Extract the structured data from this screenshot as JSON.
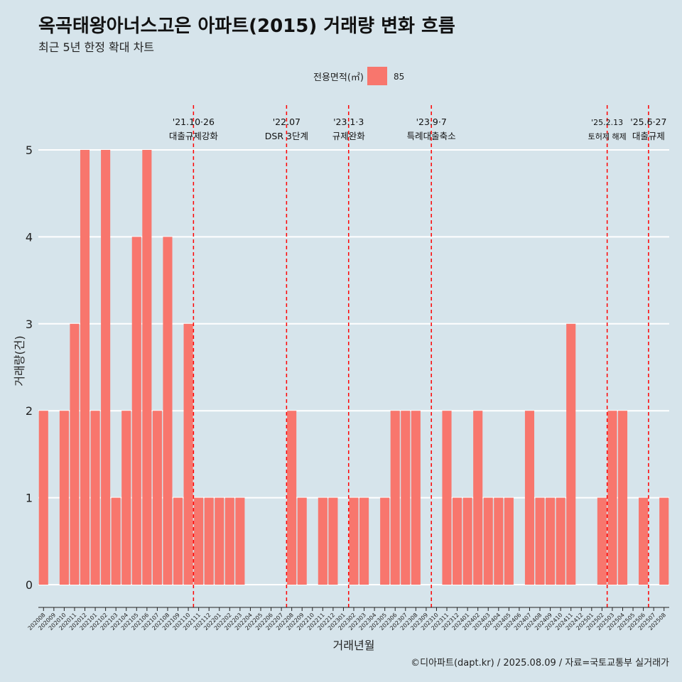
{
  "header": {
    "title": "옥곡태왕아너스고은 아파트(2015) 거래량 변화 흐름",
    "subtitle": "최근 5년 한정 확대 차트"
  },
  "caption": "©디아파트(dapt.kr) / 2025.08.09 / 자료=국토교통부 실거래가",
  "colors": {
    "background": "#d6e4eb",
    "bar": "#f8766d",
    "gridline": "#ffffff",
    "event_line": "#ff0000"
  },
  "chart_data": {
    "type": "bar",
    "xlabel": "거래년월",
    "ylabel": "거래량(건)",
    "ylim": [
      -0.22,
      5.55
    ],
    "y_ticks": [
      0,
      1,
      2,
      3,
      4,
      5
    ],
    "grid": true,
    "legend": {
      "title": "전용면적(㎡)",
      "position": "top",
      "entries": [
        {
          "label": "85",
          "color": "#f8766d"
        }
      ]
    },
    "categories": [
      "202008",
      "202009",
      "202010",
      "202011",
      "202012",
      "202101",
      "202102",
      "202103",
      "202104",
      "202105",
      "202106",
      "202107",
      "202108",
      "202109",
      "202110",
      "202111",
      "202112",
      "202201",
      "202202",
      "202203",
      "202204",
      "202205",
      "202206",
      "202207",
      "202208",
      "202209",
      "202210",
      "202211",
      "202212",
      "202301",
      "202302",
      "202303",
      "202304",
      "202305",
      "202306",
      "202307",
      "202308",
      "202309",
      "202310",
      "202311",
      "202312",
      "202401",
      "202402",
      "202403",
      "202404",
      "202405",
      "202406",
      "202407",
      "202408",
      "202409",
      "202410",
      "202411",
      "202412",
      "202501",
      "202502",
      "202503",
      "202504",
      "202505",
      "202506",
      "202507",
      "202508"
    ],
    "series": [
      {
        "name": "85",
        "values": [
          2,
          0,
          2,
          3,
          5,
          2,
          5,
          1,
          2,
          4,
          5,
          2,
          4,
          1,
          3,
          1,
          1,
          1,
          1,
          1,
          0,
          0,
          0,
          0,
          2,
          1,
          0,
          1,
          1,
          0,
          1,
          1,
          0,
          1,
          2,
          2,
          2,
          0,
          0,
          2,
          1,
          1,
          2,
          1,
          1,
          1,
          0,
          2,
          1,
          1,
          1,
          3,
          0,
          0,
          1,
          2,
          2,
          0,
          1,
          0,
          1
        ]
      }
    ],
    "events": [
      {
        "date_line1": "'21.10·26",
        "date_line2": "대출규제강화",
        "x": "202110.5"
      },
      {
        "date_line1": "'22.07",
        "date_line2": "DSR 3단계",
        "x": "202207.5"
      },
      {
        "date_line1": "'23.1·3",
        "date_line2": "규제완화",
        "x": "202301.5"
      },
      {
        "date_line1": "'23.9·7",
        "date_line2": "특례대출축소",
        "x": "202309.5"
      },
      {
        "date_line1": "'25.2.13",
        "date_line2": "토허제 해제",
        "x": "202502.5"
      },
      {
        "date_line1": "'25.6·27",
        "date_line2": "대출규제",
        "x": "202506.5"
      }
    ]
  }
}
